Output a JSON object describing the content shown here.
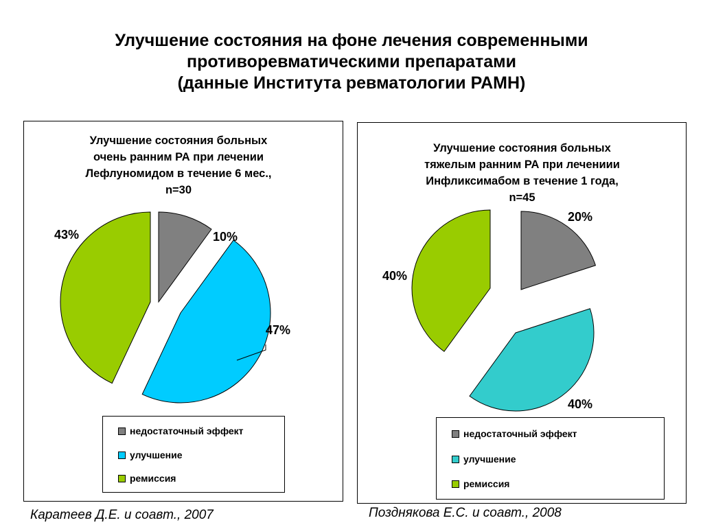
{
  "title": {
    "lines": [
      "Улучшение состояния на фоне лечения современными",
      "противоревматическими препаратами",
      "(данные Института ревматологии РАМН)"
    ]
  },
  "colors": {
    "insufficient": "#808080",
    "improvement_1": "#00ccff",
    "improvement_2": "#33cccc",
    "remission": "#99cc00"
  },
  "chart_data": [
    {
      "type": "pie",
      "title": "Улучшение состояния больных очень ранним РА при лечении Лефлуномидом в течение 6 мес., n=30",
      "title_lines": [
        "Улучшение состояния больных",
        "очень ранним РА при лечении",
        "Лефлуномидом в течение 6 мес.,",
        "n=30"
      ],
      "categories": [
        "недостаточный эффект",
        "улучшение",
        "ремиссия"
      ],
      "values": [
        10,
        47,
        43
      ],
      "labels": [
        "10%",
        "47%",
        "43%"
      ],
      "colors": [
        "#808080",
        "#00ccff",
        "#99cc00"
      ],
      "legend": "bottom"
    },
    {
      "type": "pie",
      "title": "Улучшение состояния больных тяжелым ранним РА при лечениии Инфликсимабом в течение 1 года, n=45",
      "title_lines": [
        "Улучшение состояния больных",
        "тяжелым ранним РА при лечениии",
        "Инфликсимабом в течение 1 года,",
        "n=45"
      ],
      "categories": [
        "недостаточный эффект",
        "улучшение",
        "ремиссия"
      ],
      "values": [
        20,
        40,
        40
      ],
      "labels": [
        "20%",
        "40%",
        "40%"
      ],
      "colors": [
        "#808080",
        "#33cccc",
        "#99cc00"
      ],
      "legend": "bottom"
    }
  ],
  "citations": [
    "Каратеев Д.Е. и соавт., 2007",
    "Позднякова Е.С. и соавт., 2008"
  ]
}
